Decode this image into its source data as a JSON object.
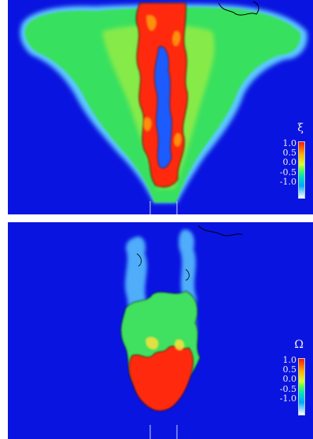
{
  "colors": {
    "background": "#0a14e0",
    "panel_gap": "#ffffff",
    "contour": "#000000",
    "nozzle": "#c8d0ff"
  },
  "panels": [
    {
      "name": "top",
      "colorbar": {
        "symbol": "ξ",
        "ticks": [
          "1.0",
          "0.5",
          "0.0",
          "-0.5",
          "-1.0"
        ]
      }
    },
    {
      "name": "bottom",
      "colorbar": {
        "symbol": "Ω",
        "ticks": [
          "1.0",
          "0.5",
          "0.0",
          "-0.5",
          "-1.0"
        ]
      }
    }
  ]
}
